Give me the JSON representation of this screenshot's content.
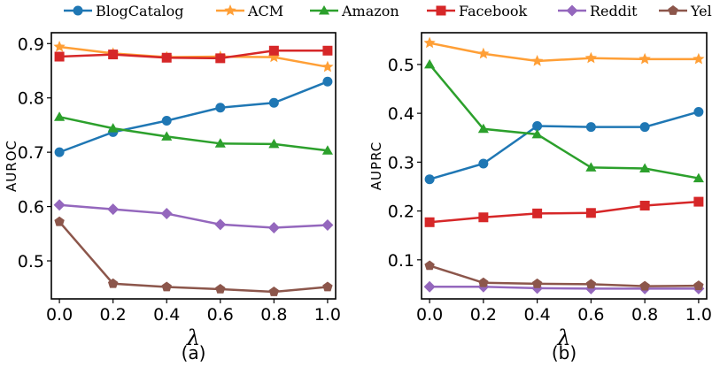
{
  "legend": {
    "placement": "top",
    "entries": [
      "BlogCatalog",
      "ACM",
      "Amazon",
      "Facebook",
      "Reddit",
      "YelpChi"
    ]
  },
  "series_style": [
    {
      "color": "#1f77b4",
      "marker": "circle"
    },
    {
      "color": "#ff9f36",
      "marker": "star"
    },
    {
      "color": "#2ca02c",
      "marker": "triangle"
    },
    {
      "color": "#d62728",
      "marker": "square"
    },
    {
      "color": "#9467bd",
      "marker": "diamond"
    },
    {
      "color": "#8c564b",
      "marker": "pentagon"
    }
  ],
  "chart_data": [
    {
      "type": "line",
      "caption": "(a)",
      "xlabel": "λ",
      "ylabel": "AUROC",
      "x": [
        0.0,
        0.2,
        0.4,
        0.6,
        0.8,
        1.0
      ],
      "xticks": [
        "0.0",
        "0.2",
        "0.4",
        "0.6",
        "0.8",
        "1.0"
      ],
      "yticks": [
        "0.5",
        "0.6",
        "0.7",
        "0.8",
        "0.9"
      ],
      "xlim": [
        -0.03,
        1.03
      ],
      "ylim": [
        0.43,
        0.92
      ],
      "grid": false,
      "series": [
        {
          "name": "BlogCatalog",
          "values": [
            0.7,
            0.737,
            0.758,
            0.782,
            0.791,
            0.83
          ]
        },
        {
          "name": "ACM",
          "values": [
            0.894,
            0.882,
            0.875,
            0.876,
            0.875,
            0.857
          ]
        },
        {
          "name": "Amazon",
          "values": [
            0.765,
            0.744,
            0.729,
            0.716,
            0.715,
            0.703
          ]
        },
        {
          "name": "Facebook",
          "values": [
            0.876,
            0.88,
            0.874,
            0.873,
            0.887,
            0.887
          ]
        },
        {
          "name": "Reddit",
          "values": [
            0.603,
            0.595,
            0.587,
            0.567,
            0.561,
            0.566
          ]
        },
        {
          "name": "YelpChi",
          "values": [
            0.572,
            0.458,
            0.452,
            0.448,
            0.443,
            0.452
          ]
        }
      ]
    },
    {
      "type": "line",
      "caption": "(b)",
      "xlabel": "λ",
      "ylabel": "AUPRC",
      "x": [
        0.0,
        0.2,
        0.4,
        0.6,
        0.8,
        1.0
      ],
      "xticks": [
        "0.0",
        "0.2",
        "0.4",
        "0.6",
        "0.8",
        "1.0"
      ],
      "yticks": [
        "0.1",
        "0.2",
        "0.3",
        "0.4",
        "0.5"
      ],
      "xlim": [
        -0.03,
        1.03
      ],
      "ylim": [
        0.02,
        0.565
      ],
      "grid": false,
      "series": [
        {
          "name": "BlogCatalog",
          "values": [
            0.265,
            0.297,
            0.374,
            0.372,
            0.372,
            0.403
          ]
        },
        {
          "name": "ACM",
          "values": [
            0.544,
            0.522,
            0.507,
            0.513,
            0.511,
            0.511
          ]
        },
        {
          "name": "Amazon",
          "values": [
            0.5,
            0.368,
            0.357,
            0.289,
            0.287,
            0.267
          ]
        },
        {
          "name": "Facebook",
          "values": [
            0.177,
            0.187,
            0.195,
            0.196,
            0.211,
            0.219
          ]
        },
        {
          "name": "Reddit",
          "values": [
            0.045,
            0.045,
            0.042,
            0.041,
            0.041,
            0.041
          ]
        },
        {
          "name": "YelpChi",
          "values": [
            0.088,
            0.053,
            0.051,
            0.05,
            0.046,
            0.047
          ]
        }
      ]
    }
  ]
}
